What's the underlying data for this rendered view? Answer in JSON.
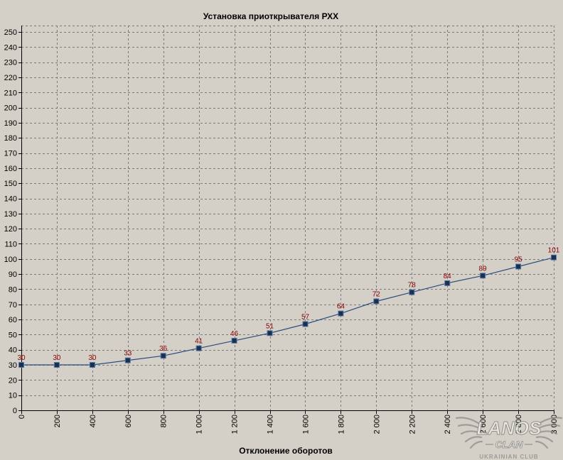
{
  "chart_data": {
    "type": "line",
    "title": "Установка приоткрывателя РХХ",
    "xlabel": "Отклонение оборотов",
    "x": [
      0,
      200,
      400,
      600,
      800,
      1000,
      1200,
      1400,
      1600,
      1800,
      2000,
      2200,
      2400,
      2600,
      2800,
      3000
    ],
    "xtick_labels": [
      "0",
      "200",
      "400",
      "600",
      "800",
      "1 000",
      "1 200",
      "1 400",
      "1 600",
      "1 800",
      "2 000",
      "2 200",
      "2 400",
      "2 600",
      "2 800",
      "3 000"
    ],
    "yticks": [
      0,
      10,
      20,
      30,
      40,
      50,
      60,
      70,
      80,
      90,
      100,
      110,
      120,
      130,
      140,
      150,
      160,
      170,
      180,
      190,
      200,
      210,
      220,
      230,
      240,
      250
    ],
    "xlim": [
      0,
      3000
    ],
    "ylim": [
      0,
      250
    ],
    "grid": true,
    "data_labels": true,
    "series": [
      {
        "values": [
          30,
          30,
          30,
          33,
          36,
          41,
          46,
          51,
          57,
          64,
          72,
          78,
          84,
          89,
          95,
          101
        ]
      }
    ]
  },
  "colors": {
    "background": "#d4d0c8",
    "line": "#2b4c7e",
    "marker_fill": "#1b2f4e",
    "marker_stroke": "#5677a6",
    "data_label": "#8b0000",
    "grid": "#7a7a7a",
    "axis": "#000000"
  },
  "watermark": {
    "title": "LANOS",
    "subtitle": "CLAN",
    "caption": "UKRAINIAN CLUB"
  }
}
